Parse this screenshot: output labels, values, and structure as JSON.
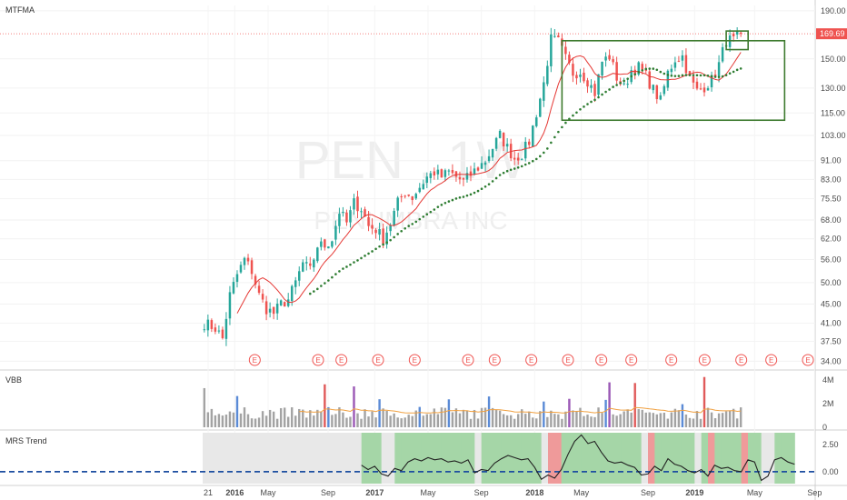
{
  "chart_data": {
    "type": "candlestick",
    "ticker_watermark": "PEN , 1W",
    "company_watermark": "PENUMBRA INC",
    "colors": {
      "up": "#26a69a",
      "down": "#ef5350",
      "sma_fast": "#e53935",
      "sma_slow": "#2e7d32",
      "box": "#3d7a2e",
      "volume_default": "#a3a3a3",
      "volume_blue": "#5b8bd6",
      "volume_red": "#e05a5a",
      "volume_purple": "#9b59b6",
      "volume_avg": "#f0a040",
      "mrs_line": "#222222",
      "mrs_zero": "#1e4fa0",
      "mrs_pos_bg": "#a5d6a7",
      "mrs_neg_bg": "#ef9a9a",
      "mrs_na_bg": "#e8e8e8",
      "last_price_bg": "#ef5350",
      "earnings": "#ef5350"
    },
    "price_pane": {
      "title": "MTFMA",
      "scale": "log",
      "ylim": [
        33,
        195
      ],
      "y_ticks": [
        "190.00",
        "169.69",
        "150.00",
        "130.00",
        "115.00",
        "103.00",
        "91.00",
        "83.00",
        "75.50",
        "68.00",
        "62.00",
        "56.00",
        "50.00",
        "45.00",
        "41.00",
        "37.50",
        "34.00"
      ],
      "last_price": "169.69",
      "anchors": [
        [
          0,
          41
        ],
        [
          3,
          40
        ],
        [
          5,
          38
        ],
        [
          7,
          47
        ],
        [
          9,
          52
        ],
        [
          11,
          56
        ],
        [
          13,
          53
        ],
        [
          15,
          47
        ],
        [
          17,
          44
        ],
        [
          19,
          43
        ],
        [
          21,
          45
        ],
        [
          23,
          46
        ],
        [
          25,
          50
        ],
        [
          27,
          55
        ],
        [
          29,
          53
        ],
        [
          31,
          60
        ],
        [
          33,
          60
        ],
        [
          35,
          62
        ],
        [
          37,
          71
        ],
        [
          39,
          67
        ],
        [
          41,
          74
        ],
        [
          43,
          72
        ],
        [
          45,
          66
        ],
        [
          47,
          65
        ],
        [
          49,
          62
        ],
        [
          51,
          67
        ],
        [
          53,
          74
        ],
        [
          55,
          78
        ],
        [
          57,
          76
        ],
        [
          59,
          80
        ],
        [
          61,
          84
        ],
        [
          63,
          86
        ],
        [
          65,
          84
        ],
        [
          67,
          86
        ],
        [
          69,
          84
        ],
        [
          71,
          82
        ],
        [
          73,
          85
        ],
        [
          75,
          88
        ],
        [
          77,
          91
        ],
        [
          79,
          97
        ],
        [
          81,
          103
        ],
        [
          83,
          97
        ],
        [
          85,
          92
        ],
        [
          87,
          94
        ],
        [
          89,
          100
        ],
        [
          91,
          115
        ],
        [
          93,
          133
        ],
        [
          95,
          165
        ],
        [
          97,
          163
        ],
        [
          99,
          150
        ],
        [
          101,
          140
        ],
        [
          103,
          141
        ],
        [
          105,
          135
        ],
        [
          107,
          127
        ],
        [
          109,
          148
        ],
        [
          111,
          152
        ],
        [
          113,
          137
        ],
        [
          115,
          130
        ],
        [
          117,
          142
        ],
        [
          119,
          144
        ],
        [
          121,
          138
        ],
        [
          123,
          129
        ],
        [
          125,
          122
        ],
        [
          127,
          140
        ],
        [
          129,
          150
        ],
        [
          131,
          152
        ],
        [
          133,
          136
        ],
        [
          135,
          128
        ],
        [
          137,
          131
        ],
        [
          139,
          135
        ],
        [
          141,
          146
        ],
        [
          143,
          165
        ],
        [
          145,
          164
        ],
        [
          147,
          169.69
        ]
      ],
      "box_large": {
        "week_start": 98,
        "week_end": 159,
        "top": 164,
        "bottom": 111
      },
      "box_small": {
        "week_start": 143,
        "week_end": 149,
        "top": 172,
        "bottom": 157
      },
      "earnings_weeks": [
        8,
        27,
        34,
        45,
        56,
        72,
        80,
        91,
        102,
        112,
        121,
        133,
        143,
        154,
        163,
        174
      ],
      "earnings_label": "E"
    },
    "volume_pane": {
      "title": "VBB",
      "y_ticks": [
        "4M",
        "2M",
        "0"
      ],
      "ylim": [
        0,
        4600000
      ]
    },
    "mrs_pane": {
      "title": "MRS Trend",
      "y_ticks": [
        "2.50",
        "0.00"
      ],
      "ylim": [
        -1.1,
        3.6
      ],
      "na_until_week": 46,
      "values": [
        [
          46,
          0.6
        ],
        [
          48,
          0.2
        ],
        [
          50,
          0.5
        ],
        [
          52,
          -0.2
        ],
        [
          54,
          -0.4
        ],
        [
          56,
          0.3
        ],
        [
          58,
          0.1
        ],
        [
          60,
          0.9
        ],
        [
          62,
          1.2
        ],
        [
          64,
          1.0
        ],
        [
          66,
          1.3
        ],
        [
          68,
          1.1
        ],
        [
          70,
          1.2
        ],
        [
          72,
          0.9
        ],
        [
          74,
          1.0
        ],
        [
          76,
          0.8
        ],
        [
          78,
          1.1
        ],
        [
          80,
          -0.1
        ],
        [
          82,
          0.2
        ],
        [
          84,
          0.1
        ],
        [
          86,
          0.8
        ],
        [
          88,
          1.2
        ],
        [
          90,
          1.5
        ],
        [
          92,
          1.3
        ],
        [
          94,
          1.1
        ],
        [
          96,
          1.2
        ],
        [
          98,
          0.4
        ],
        [
          100,
          -0.7
        ],
        [
          102,
          -0.3
        ],
        [
          104,
          -0.6
        ],
        [
          106,
          0.2
        ],
        [
          108,
          1.6
        ],
        [
          110,
          2.8
        ],
        [
          112,
          3.4
        ],
        [
          114,
          2.6
        ],
        [
          116,
          2.8
        ],
        [
          118,
          1.8
        ],
        [
          120,
          1.0
        ],
        [
          122,
          0.8
        ],
        [
          124,
          0.9
        ],
        [
          126,
          0.6
        ],
        [
          128,
          0.4
        ],
        [
          130,
          -0.3
        ],
        [
          132,
          -0.2
        ],
        [
          134,
          0.5
        ],
        [
          136,
          0.1
        ],
        [
          138,
          1.2
        ],
        [
          140,
          0.7
        ],
        [
          142,
          0.5
        ],
        [
          144,
          0.1
        ],
        [
          146,
          -0.1
        ],
        [
          148,
          0.2
        ],
        [
          150,
          -0.4
        ],
        [
          152,
          0.6
        ],
        [
          154,
          0.3
        ],
        [
          156,
          0.4
        ],
        [
          158,
          0.1
        ],
        [
          160,
          0.0
        ],
        [
          162,
          1.1
        ],
        [
          164,
          0.9
        ],
        [
          166,
          -0.8
        ],
        [
          168,
          -0.4
        ],
        [
          170,
          1.1
        ],
        [
          172,
          1.3
        ],
        [
          174,
          0.9
        ],
        [
          176,
          0.7
        ]
      ]
    },
    "x_ticks": [
      {
        "week": 0,
        "label": "21"
      },
      {
        "week": 8,
        "label": "2016"
      },
      {
        "week": 18,
        "label": "May"
      },
      {
        "week": 36,
        "label": "Sep"
      },
      {
        "week": 50,
        "label": "2017"
      },
      {
        "week": 66,
        "label": "May"
      },
      {
        "week": 82,
        "label": "Sep"
      },
      {
        "week": 98,
        "label": "2018"
      },
      {
        "week": 112,
        "label": "May"
      },
      {
        "week": 132,
        "label": "Sep"
      },
      {
        "week": 146,
        "label": "2019"
      },
      {
        "week": 164,
        "label": "May"
      },
      {
        "week": 182,
        "label": "Sep"
      }
    ],
    "weeks_total": 183
  }
}
